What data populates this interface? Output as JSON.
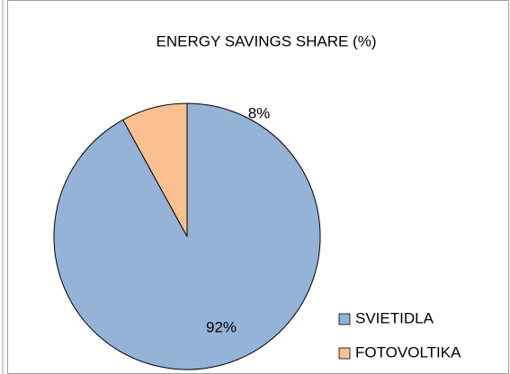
{
  "chart_data": {
    "type": "pie",
    "title": "ENERGY SAVINGS SHARE (%)",
    "categories": [
      "SVIETIDLA",
      "FOTOVOLTIKA"
    ],
    "values": [
      92,
      8
    ],
    "value_labels": [
      "92%",
      "8%"
    ],
    "colors": [
      "#95b3d7",
      "#fac090"
    ],
    "legend": "lower right"
  }
}
